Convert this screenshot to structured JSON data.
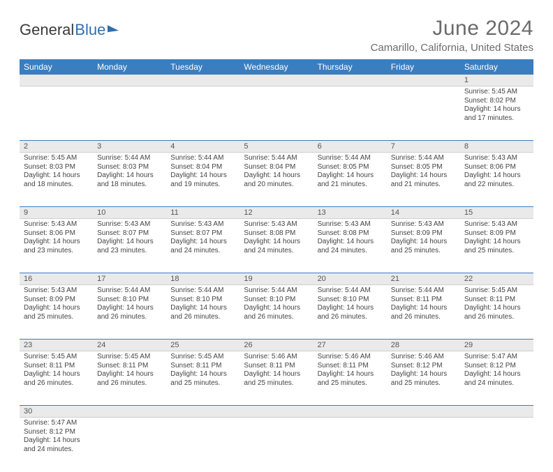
{
  "brand": {
    "part1": "General",
    "part2": "Blue"
  },
  "title": "June 2024",
  "location": "Camarillo, California, United States",
  "colors": {
    "header_bg": "#3a7ebf",
    "header_text": "#ffffff",
    "daynum_bg": "#eaeaea",
    "border": "#3a7ebf",
    "text": "#444444",
    "title_text": "#6b6b6b"
  },
  "typography": {
    "title_fontsize": 30,
    "location_fontsize": 15,
    "weekday_fontsize": 12,
    "daynum_fontsize": 11,
    "body_fontsize": 10
  },
  "weekdays": [
    "Sunday",
    "Monday",
    "Tuesday",
    "Wednesday",
    "Thursday",
    "Friday",
    "Saturday"
  ],
  "weeks": [
    [
      null,
      null,
      null,
      null,
      null,
      null,
      {
        "n": "1",
        "sr": "5:45 AM",
        "ss": "8:02 PM",
        "dl": "14 hours and 17 minutes."
      }
    ],
    [
      {
        "n": "2",
        "sr": "5:45 AM",
        "ss": "8:03 PM",
        "dl": "14 hours and 18 minutes."
      },
      {
        "n": "3",
        "sr": "5:44 AM",
        "ss": "8:03 PM",
        "dl": "14 hours and 18 minutes."
      },
      {
        "n": "4",
        "sr": "5:44 AM",
        "ss": "8:04 PM",
        "dl": "14 hours and 19 minutes."
      },
      {
        "n": "5",
        "sr": "5:44 AM",
        "ss": "8:04 PM",
        "dl": "14 hours and 20 minutes."
      },
      {
        "n": "6",
        "sr": "5:44 AM",
        "ss": "8:05 PM",
        "dl": "14 hours and 21 minutes."
      },
      {
        "n": "7",
        "sr": "5:44 AM",
        "ss": "8:05 PM",
        "dl": "14 hours and 21 minutes."
      },
      {
        "n": "8",
        "sr": "5:43 AM",
        "ss": "8:06 PM",
        "dl": "14 hours and 22 minutes."
      }
    ],
    [
      {
        "n": "9",
        "sr": "5:43 AM",
        "ss": "8:06 PM",
        "dl": "14 hours and 23 minutes."
      },
      {
        "n": "10",
        "sr": "5:43 AM",
        "ss": "8:07 PM",
        "dl": "14 hours and 23 minutes."
      },
      {
        "n": "11",
        "sr": "5:43 AM",
        "ss": "8:07 PM",
        "dl": "14 hours and 24 minutes."
      },
      {
        "n": "12",
        "sr": "5:43 AM",
        "ss": "8:08 PM",
        "dl": "14 hours and 24 minutes."
      },
      {
        "n": "13",
        "sr": "5:43 AM",
        "ss": "8:08 PM",
        "dl": "14 hours and 24 minutes."
      },
      {
        "n": "14",
        "sr": "5:43 AM",
        "ss": "8:09 PM",
        "dl": "14 hours and 25 minutes."
      },
      {
        "n": "15",
        "sr": "5:43 AM",
        "ss": "8:09 PM",
        "dl": "14 hours and 25 minutes."
      }
    ],
    [
      {
        "n": "16",
        "sr": "5:43 AM",
        "ss": "8:09 PM",
        "dl": "14 hours and 25 minutes."
      },
      {
        "n": "17",
        "sr": "5:44 AM",
        "ss": "8:10 PM",
        "dl": "14 hours and 26 minutes."
      },
      {
        "n": "18",
        "sr": "5:44 AM",
        "ss": "8:10 PM",
        "dl": "14 hours and 26 minutes."
      },
      {
        "n": "19",
        "sr": "5:44 AM",
        "ss": "8:10 PM",
        "dl": "14 hours and 26 minutes."
      },
      {
        "n": "20",
        "sr": "5:44 AM",
        "ss": "8:10 PM",
        "dl": "14 hours and 26 minutes."
      },
      {
        "n": "21",
        "sr": "5:44 AM",
        "ss": "8:11 PM",
        "dl": "14 hours and 26 minutes."
      },
      {
        "n": "22",
        "sr": "5:45 AM",
        "ss": "8:11 PM",
        "dl": "14 hours and 26 minutes."
      }
    ],
    [
      {
        "n": "23",
        "sr": "5:45 AM",
        "ss": "8:11 PM",
        "dl": "14 hours and 26 minutes."
      },
      {
        "n": "24",
        "sr": "5:45 AM",
        "ss": "8:11 PM",
        "dl": "14 hours and 26 minutes."
      },
      {
        "n": "25",
        "sr": "5:45 AM",
        "ss": "8:11 PM",
        "dl": "14 hours and 25 minutes."
      },
      {
        "n": "26",
        "sr": "5:46 AM",
        "ss": "8:11 PM",
        "dl": "14 hours and 25 minutes."
      },
      {
        "n": "27",
        "sr": "5:46 AM",
        "ss": "8:11 PM",
        "dl": "14 hours and 25 minutes."
      },
      {
        "n": "28",
        "sr": "5:46 AM",
        "ss": "8:12 PM",
        "dl": "14 hours and 25 minutes."
      },
      {
        "n": "29",
        "sr": "5:47 AM",
        "ss": "8:12 PM",
        "dl": "14 hours and 24 minutes."
      }
    ],
    [
      {
        "n": "30",
        "sr": "5:47 AM",
        "ss": "8:12 PM",
        "dl": "14 hours and 24 minutes."
      },
      null,
      null,
      null,
      null,
      null,
      null
    ]
  ],
  "labels": {
    "sunrise_prefix": "Sunrise: ",
    "sunset_prefix": "Sunset: ",
    "daylight_prefix": "Daylight: "
  }
}
